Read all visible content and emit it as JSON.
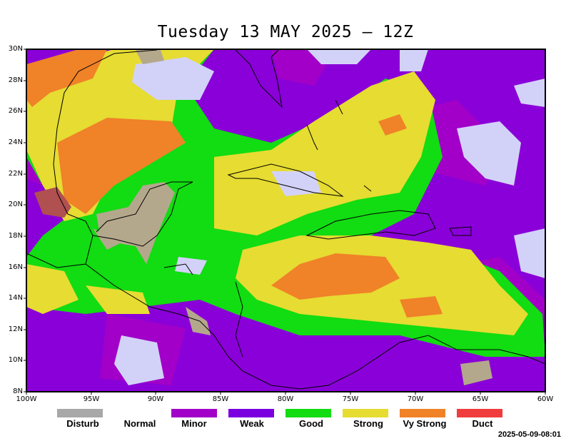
{
  "title": "Tuesday 13 MAY 2025 – 12Z",
  "timestamp": "2025-05-09-08:01",
  "axes": {
    "lat_labels": [
      "30N",
      "28N",
      "26N",
      "24N",
      "22N",
      "20N",
      "18N",
      "16N",
      "14N",
      "12N",
      "10N",
      "8N"
    ],
    "lon_labels": [
      "100W",
      "95W",
      "90W",
      "85W",
      "80W",
      "75W",
      "70W",
      "65W",
      "60W"
    ]
  },
  "legend": [
    {
      "label": "Disturb",
      "color": "#a8a8a8"
    },
    {
      "label": "Normal",
      "color": ""
    },
    {
      "label": "Minor",
      "color": "#a200c8"
    },
    {
      "label": "Weak",
      "color": "#7a00e0"
    },
    {
      "label": "Good",
      "color": "#12dc12"
    },
    {
      "label": "Strong",
      "color": "#e6dc32"
    },
    {
      "label": "Vy Strong",
      "color": "#f08228"
    },
    {
      "label": "Duct",
      "color": "#f03c3c"
    }
  ],
  "colors": {
    "normal_fill": "#d2d2f8",
    "disturb_fill": "#b4a88c"
  }
}
